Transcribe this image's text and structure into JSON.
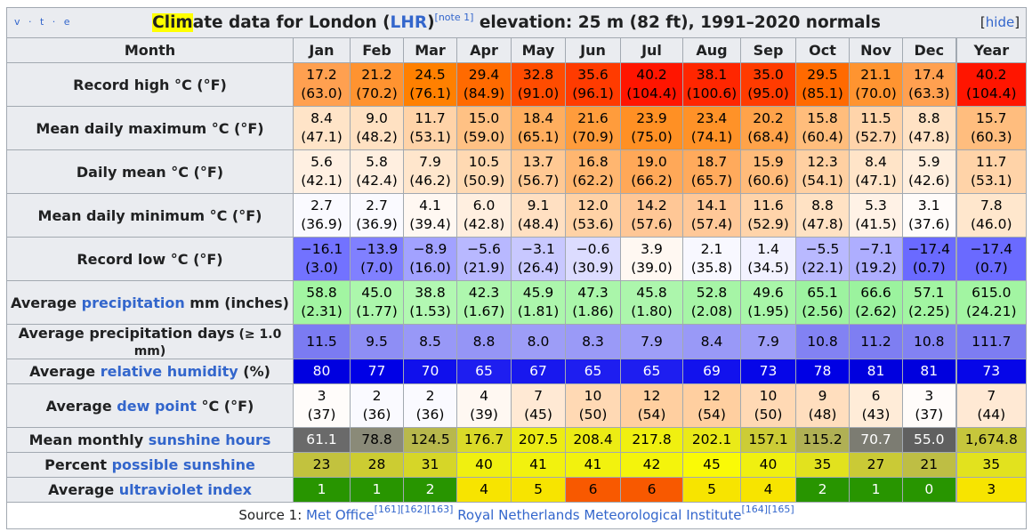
{
  "navbox": {
    "vte": "v · t · e",
    "hide_label": "hide"
  },
  "title": {
    "clim": "Clim",
    "ate": "ate data for London (",
    "lhr": "LHR",
    "close": ")",
    "note": "[note 1]",
    "rest": " elevation: 25 m (82 ft), 1991–2020 normals"
  },
  "header": {
    "month": "Month",
    "months": [
      "Jan",
      "Feb",
      "Mar",
      "Apr",
      "May",
      "Jun",
      "Jul",
      "Aug",
      "Sep",
      "Oct",
      "Nov",
      "Dec"
    ],
    "year": "Year"
  },
  "rows": [
    {
      "label": "Record high °C (°F)",
      "type": "two",
      "c": [
        "17.2",
        "21.2",
        "24.5",
        "29.4",
        "32.8",
        "35.6",
        "40.2",
        "38.1",
        "35.0",
        "29.5",
        "21.1",
        "17.4",
        "40.2"
      ],
      "f": [
        "(63.0)",
        "(70.2)",
        "(76.1)",
        "(84.9)",
        "(91.0)",
        "(96.1)",
        "(104.4)",
        "(100.6)",
        "(95.0)",
        "(85.1)",
        "(70.0)",
        "(63.3)",
        "(104.4)"
      ],
      "bg": [
        "#ffa050",
        "#ff9330",
        "#ff8000",
        "#ff6a00",
        "#ff4c00",
        "#ff3b00",
        "#ff1500",
        "#ff2600",
        "#ff3b00",
        "#ff6a00",
        "#ff9430",
        "#ffa050",
        "#ff1500"
      ],
      "fg": []
    },
    {
      "label": "Mean daily maximum °C (°F)",
      "type": "two",
      "c": [
        "8.4",
        "9.0",
        "11.7",
        "15.0",
        "18.4",
        "21.6",
        "23.9",
        "23.4",
        "20.2",
        "15.8",
        "11.5",
        "8.8",
        "15.7"
      ],
      "f": [
        "(47.1)",
        "(48.2)",
        "(53.1)",
        "(59.0)",
        "(65.1)",
        "(70.9)",
        "(75.0)",
        "(74.1)",
        "(68.4)",
        "(60.4)",
        "(52.7)",
        "(47.8)",
        "(60.3)"
      ],
      "bg": [
        "#ffe4c8",
        "#ffe1c2",
        "#ffd3a8",
        "#ffc184",
        "#ffae5e",
        "#ff9c3c",
        "#ff9024",
        "#ff9228",
        "#ffa34a",
        "#ffbd7c",
        "#ffd4aa",
        "#ffe2c4",
        "#ffbd7e"
      ],
      "fg": []
    },
    {
      "label": "Daily mean °C (°F)",
      "type": "two",
      "c": [
        "5.6",
        "5.8",
        "7.9",
        "10.5",
        "13.7",
        "16.8",
        "19.0",
        "18.7",
        "15.9",
        "12.3",
        "8.4",
        "5.9",
        "11.7"
      ],
      "f": [
        "(42.1)",
        "(42.4)",
        "(46.2)",
        "(50.9)",
        "(56.7)",
        "(62.2)",
        "(66.2)",
        "(65.7)",
        "(60.6)",
        "(54.1)",
        "(47.1)",
        "(42.6)",
        "(53.1)"
      ],
      "bg": [
        "#fff0e2",
        "#ffefe0",
        "#ffe6cc",
        "#ffd9b2",
        "#ffc994",
        "#ffb670",
        "#ffa858",
        "#ffaa5c",
        "#ffbb7a",
        "#ffd0a2",
        "#ffe4c8",
        "#ffefdf",
        "#ffd3a8"
      ],
      "fg": []
    },
    {
      "label": "Mean daily minimum °C (°F)",
      "type": "two",
      "c": [
        "2.7",
        "2.7",
        "4.1",
        "6.0",
        "9.1",
        "12.0",
        "14.2",
        "14.1",
        "11.6",
        "8.8",
        "5.3",
        "3.1",
        "7.8"
      ],
      "f": [
        "(36.9)",
        "(36.9)",
        "(39.4)",
        "(42.8)",
        "(48.4)",
        "(53.6)",
        "(57.6)",
        "(57.4)",
        "(52.9)",
        "(47.8)",
        "(41.5)",
        "(37.6)",
        "(46.0)"
      ],
      "bg": [
        "#fafaff",
        "#fafaff",
        "#fff8f2",
        "#ffefe0",
        "#ffe0c2",
        "#ffd2a6",
        "#ffc796",
        "#ffc898",
        "#ffd4aa",
        "#ffe2c4",
        "#fff2e6",
        "#fffcfa",
        "#ffe7cd"
      ],
      "fg": []
    },
    {
      "label": "Record low °C (°F)",
      "type": "two",
      "c": [
        "−16.1",
        "−13.9",
        "−8.9",
        "−5.6",
        "−3.1",
        "−0.6",
        "3.9",
        "2.1",
        "1.4",
        "−5.5",
        "−7.1",
        "−17.4",
        "−17.4"
      ],
      "f": [
        "(3.0)",
        "(7.0)",
        "(16.0)",
        "(21.9)",
        "(26.4)",
        "(30.9)",
        "(39.0)",
        "(35.8)",
        "(34.5)",
        "(22.1)",
        "(19.2)",
        "(0.7)",
        "(0.7)"
      ],
      "bg": [
        "#7272ff",
        "#8080ff",
        "#a2a2ff",
        "#b8b8ff",
        "#c8c8ff",
        "#dcdcff",
        "#fff8f2",
        "#f8f8ff",
        "#f2f2ff",
        "#b9b9ff",
        "#aeaeff",
        "#6a6aff",
        "#6a6aff"
      ],
      "fg": []
    },
    {
      "label_parts": [
        "Average ",
        "precipitation",
        " mm (inches)"
      ],
      "type": "two",
      "c": [
        "58.8",
        "45.0",
        "38.8",
        "42.3",
        "45.9",
        "47.3",
        "45.8",
        "52.8",
        "49.6",
        "65.1",
        "66.6",
        "57.1",
        "615.0"
      ],
      "f": [
        "(2.31)",
        "(1.77)",
        "(1.53)",
        "(1.67)",
        "(1.81)",
        "(1.86)",
        "(1.80)",
        "(2.08)",
        "(1.95)",
        "(2.56)",
        "(2.62)",
        "(2.25)",
        "(24.21)"
      ],
      "bg": [
        "#a2f5a2",
        "#acf7ac",
        "#b2f8b2",
        "#aef7ae",
        "#acf6ac",
        "#aaf6aa",
        "#acf6ac",
        "#a6f5a6",
        "#a8f6a8",
        "#9df3a0",
        "#9bf39e",
        "#a2f5a2",
        "#a2f5a2"
      ],
      "fg": []
    },
    {
      "label": "Average precipitation days",
      "label_small": " (≥ 1.0 mm)",
      "type": "one",
      "v": [
        "11.5",
        "9.5",
        "8.5",
        "8.8",
        "8.0",
        "8.3",
        "7.9",
        "8.4",
        "7.9",
        "10.8",
        "11.2",
        "10.8",
        "111.7"
      ],
      "bg": [
        "#7b7bf2",
        "#8e8ef5",
        "#9898f7",
        "#9595f6",
        "#9d9df7",
        "#9a9af7",
        "#9e9ef8",
        "#9999f7",
        "#9e9ef8",
        "#8282f3",
        "#7e7ef2",
        "#8282f3",
        "#7d7df2"
      ],
      "fg": []
    },
    {
      "label_parts": [
        "Average ",
        "relative humidity",
        " (%)"
      ],
      "type": "one",
      "v": [
        "80",
        "77",
        "70",
        "65",
        "67",
        "65",
        "65",
        "69",
        "73",
        "78",
        "81",
        "81",
        "73"
      ],
      "bg": [
        "#0000e0",
        "#0000e6",
        "#1010ec",
        "#1e1ef0",
        "#1818ee",
        "#1e1ef0",
        "#1e1ef0",
        "#1212ed",
        "#0606e8",
        "#0000e4",
        "#0000de",
        "#0000de",
        "#0606e8"
      ],
      "fg": [
        "#ffffff"
      ]
    },
    {
      "label_parts": [
        "Average ",
        "dew point",
        " °C (°F)"
      ],
      "type": "two",
      "c": [
        "3",
        "2",
        "2",
        "4",
        "7",
        "10",
        "12",
        "12",
        "10",
        "9",
        "6",
        "3",
        "7"
      ],
      "f": [
        "(37)",
        "(36)",
        "(36)",
        "(39)",
        "(45)",
        "(50)",
        "(54)",
        "(54)",
        "(50)",
        "(48)",
        "(43)",
        "(37)",
        "(44)"
      ],
      "bg": [
        "#fffcfa",
        "#fafaff",
        "#fafaff",
        "#fff8f2",
        "#ffe9d4",
        "#ffd9b4",
        "#ffcfa0",
        "#ffcfa0",
        "#ffd9b4",
        "#ffdebe",
        "#ffecd8",
        "#fffcfa",
        "#ffe9d4"
      ],
      "fg": []
    },
    {
      "label_parts": [
        "Mean monthly ",
        "sunshine hours",
        ""
      ],
      "type": "one",
      "v": [
        "61.1",
        "78.8",
        "124.5",
        "176.7",
        "207.5",
        "208.4",
        "217.8",
        "202.1",
        "157.1",
        "115.2",
        "70.7",
        "55.0",
        "1,674.8"
      ],
      "bg": [
        "#6a6a6a",
        "#8a8a78",
        "#b8b84c",
        "#dada28",
        "#ecec14",
        "#ecec14",
        "#f0f010",
        "#eaea18",
        "#cccc36",
        "#b0b054",
        "#7c7c72",
        "#606060",
        "#c6c63c"
      ],
      "fg": [
        "#ffffff",
        "",
        "",
        "",
        "",
        "",
        "",
        "",
        "",
        "",
        "#ffffff",
        "#ffffff",
        ""
      ]
    },
    {
      "label_parts": [
        "Percent ",
        "possible sunshine",
        ""
      ],
      "type": "one",
      "v": [
        "23",
        "28",
        "31",
        "40",
        "41",
        "41",
        "42",
        "45",
        "40",
        "35",
        "27",
        "21",
        "35"
      ],
      "bg": [
        "#c2c23e",
        "#cccc32",
        "#d6d628",
        "#f0f010",
        "#f2f20e",
        "#f2f20e",
        "#f4f40c",
        "#fafa06",
        "#f0f010",
        "#e2e21e",
        "#caca36",
        "#bebe44",
        "#e2e21e"
      ],
      "fg": []
    },
    {
      "label_parts": [
        "Average ",
        "ultraviolet index",
        ""
      ],
      "type": "one",
      "v": [
        "1",
        "1",
        "2",
        "4",
        "5",
        "6",
        "6",
        "5",
        "4",
        "2",
        "1",
        "0",
        "3"
      ],
      "bg": [
        "#289500",
        "#289500",
        "#289500",
        "#f7e400",
        "#f7e400",
        "#f85900",
        "#f85900",
        "#f7e400",
        "#f7e400",
        "#289500",
        "#289500",
        "#289500",
        "#f7e400"
      ],
      "fg": [
        "#ffffff",
        "#ffffff",
        "#ffffff",
        "",
        "",
        "",
        "",
        "",
        "",
        "#ffffff",
        "#ffffff",
        "#ffffff",
        ""
      ]
    }
  ],
  "source": {
    "prefix": "Source 1: ",
    "met": "Met Office",
    "met_refs": "[161][162][163]",
    "knmi": "Royal Netherlands Meteorological Institute",
    "knmi_refs": "[164][165]"
  }
}
